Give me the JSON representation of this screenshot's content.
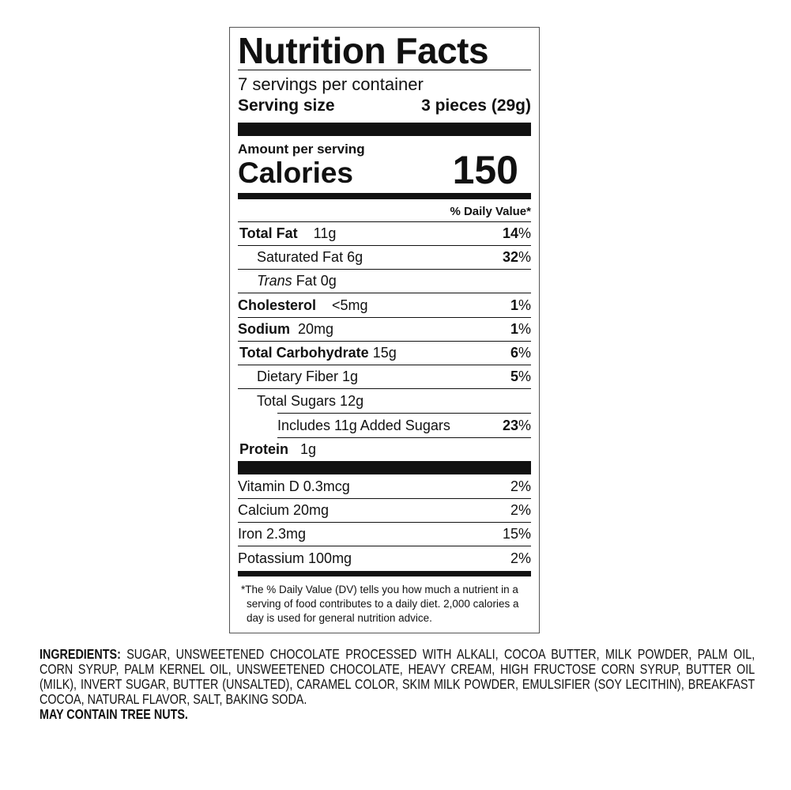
{
  "label": {
    "title": "Nutrition Facts",
    "servings": "7 servings per container",
    "serving_size_label": "Serving size",
    "serving_size_value": "3 pieces (29g)",
    "amount_per_serving": "Amount per serving",
    "calories_label": "Calories",
    "calories_value": "150",
    "dv_header": "% Daily Value*",
    "nutrients": [
      {
        "name": "Total Fat",
        "amount": "11g",
        "dv": "14",
        "pct": "%"
      },
      {
        "name": "Saturated Fat 6g",
        "dv": "32",
        "pct": "%"
      },
      {
        "name_italic": "Trans",
        "name": " Fat 0g"
      },
      {
        "name": "Cholesterol",
        "amount": "<5mg",
        "dv": "1",
        "pct": "%"
      },
      {
        "name": "Sodium",
        "amount": "20mg",
        "dv": "1",
        "pct": "%"
      },
      {
        "name": "Total Carbohydrate",
        "amount": "15g",
        "dv": "6",
        "pct": "%"
      },
      {
        "name": "Dietary Fiber 1g",
        "dv": "5",
        "pct": "%"
      },
      {
        "name": "Total Sugars 12g"
      },
      {
        "name": "Includes 11g Added Sugars",
        "dv": "23",
        "pct": "%"
      },
      {
        "name": "Protein",
        "amount": "1g"
      }
    ],
    "vitamins": [
      {
        "name": "Vitamin D 0.3mcg",
        "dv": "2%"
      },
      {
        "name": "Calcium 20mg",
        "dv": "2%"
      },
      {
        "name": "Iron 2.3mg",
        "dv": "15%"
      },
      {
        "name": "Potassium 100mg",
        "dv": "2%"
      }
    ],
    "footnote": [
      "*The % Daily Value (DV) tells you how much a nutrient in a",
      "serving of food contributes to a daily diet. 2,000 calories a",
      "day is used for general nutrition advice."
    ]
  },
  "ingredients": {
    "label": "INGREDIENTS:",
    "text": "SUGAR, UNSWEETENED CHOCOLATE PROCESSED WITH ALKALI, COCOA BUTTER, MILK POWDER, PALM OIL, CORN SYRUP, PALM KERNEL OIL, UNSWEETENED CHOCOLATE, HEAVY CREAM, HIGH FRUCTOSE CORN SYRUP, BUTTER OIL (MILK), INVERT SUGAR, BUTTER (UNSALTED), CARAMEL COLOR, SKIM MILK POWDER, EMULSIFIER (SOY LECITHIN), BREAKFAST COCOA, NATURAL FLAVOR, SALT, BAKING SODA.",
    "allergen": "MAY CONTAIN TREE NUTS."
  }
}
